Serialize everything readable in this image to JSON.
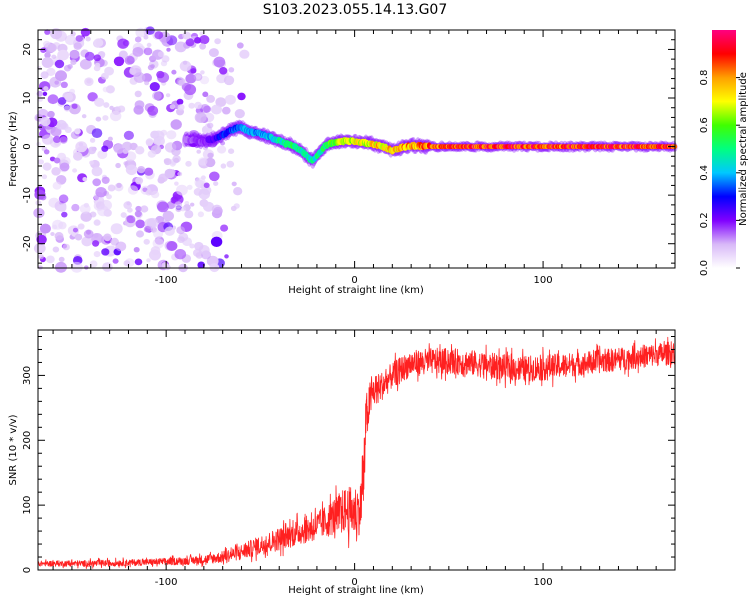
{
  "title": "S103.2023.055.14.13.G07",
  "chart_data": [
    {
      "type": "heatmap",
      "xlabel": "Height of straight line (km)",
      "ylabel": "Frequency (Hz)",
      "xlim": [
        -168,
        170
      ],
      "ylim": [
        -25,
        24
      ],
      "xticks": [
        -100,
        0,
        100
      ],
      "xtick_labels": [
        "-100",
        "0",
        "100"
      ],
      "yticks": [
        -20,
        -10,
        0,
        10,
        20
      ],
      "ytick_labels": [
        "-20",
        "-10",
        "0",
        "10",
        "20"
      ],
      "noise_region_x": [
        -168,
        -80
      ],
      "ridge": {
        "x": [
          -90,
          -80,
          -72,
          -65,
          -60,
          -56,
          -52,
          -48,
          -44,
          -40,
          -36,
          -32,
          -28,
          -24,
          -22,
          -20,
          -16,
          -12,
          -8,
          -4,
          0,
          5,
          10,
          15,
          20,
          25,
          30,
          40,
          50,
          60,
          80,
          100,
          120,
          140,
          160,
          170
        ],
        "freq": [
          1.5,
          1.0,
          2.0,
          3.5,
          4.0,
          3.0,
          2.8,
          2.4,
          1.8,
          1.2,
          0.5,
          0.0,
          -1.0,
          -2.5,
          -2.8,
          -2.0,
          0.0,
          0.8,
          1.0,
          1.2,
          1.0,
          0.8,
          0.5,
          0.0,
          -0.8,
          -0.2,
          0.2,
          0.0,
          0.0,
          0.0,
          0.0,
          0.0,
          0.0,
          0.0,
          0.0,
          0.0
        ],
        "amplitude": [
          0.15,
          0.2,
          0.3,
          0.35,
          0.4,
          0.45,
          0.4,
          0.4,
          0.45,
          0.5,
          0.55,
          0.55,
          0.5,
          0.5,
          0.5,
          0.5,
          0.55,
          0.65,
          0.7,
          0.7,
          0.75,
          0.75,
          0.78,
          0.8,
          0.8,
          0.85,
          0.85,
          0.9,
          0.92,
          0.95,
          0.95,
          0.95,
          0.95,
          0.95,
          0.95,
          0.95
        ]
      },
      "colorbar": {
        "label": "Normalized spectral amplitude",
        "range": [
          0,
          1
        ],
        "ticks": [
          0.0,
          0.2,
          0.4,
          0.6,
          0.8
        ],
        "tick_labels": [
          "0.0",
          "0.2",
          "0.4",
          "0.6",
          "0.8"
        ],
        "colors": [
          "#ffffff",
          "#d8b8f8",
          "#8000ff",
          "#0000ff",
          "#00c8ff",
          "#00ff80",
          "#40ff00",
          "#ffff00",
          "#ffa000",
          "#ff0000",
          "#ff0080"
        ]
      }
    },
    {
      "type": "line",
      "xlabel": "Height of straight line (km)",
      "ylabel": "SNR (10 * v/v)",
      "xlim": [
        -168,
        170
      ],
      "ylim": [
        0,
        370
      ],
      "xticks": [
        -100,
        0,
        100
      ],
      "xtick_labels": [
        "-100",
        "0",
        "100"
      ],
      "yticks": [
        0,
        100,
        200,
        300
      ],
      "ytick_labels": [
        "0",
        "100",
        "200",
        "300"
      ],
      "color": "#ff2020",
      "series": [
        {
          "name": "SNR",
          "x": [
            -168,
            -140,
            -110,
            -90,
            -80,
            -70,
            -60,
            -50,
            -40,
            -30,
            -20,
            -15,
            -10,
            -5,
            0,
            3,
            5,
            6,
            8,
            10,
            15,
            20,
            25,
            30,
            40,
            50,
            60,
            70,
            80,
            90,
            100,
            120,
            140,
            160,
            170
          ],
          "values": [
            10,
            10,
            12,
            14,
            16,
            20,
            28,
            38,
            48,
            58,
            68,
            75,
            85,
            92,
            90,
            95,
            150,
            230,
            260,
            275,
            285,
            300,
            310,
            318,
            322,
            322,
            320,
            316,
            312,
            310,
            312,
            318,
            325,
            332,
            335
          ],
          "noise": [
            4,
            5,
            5,
            6,
            7,
            9,
            12,
            15,
            18,
            20,
            22,
            25,
            30,
            35,
            40,
            40,
            60,
            40,
            30,
            25,
            22,
            20,
            20,
            20,
            20,
            20,
            20,
            20,
            20,
            20,
            20,
            18,
            18,
            18,
            18
          ]
        }
      ]
    }
  ]
}
